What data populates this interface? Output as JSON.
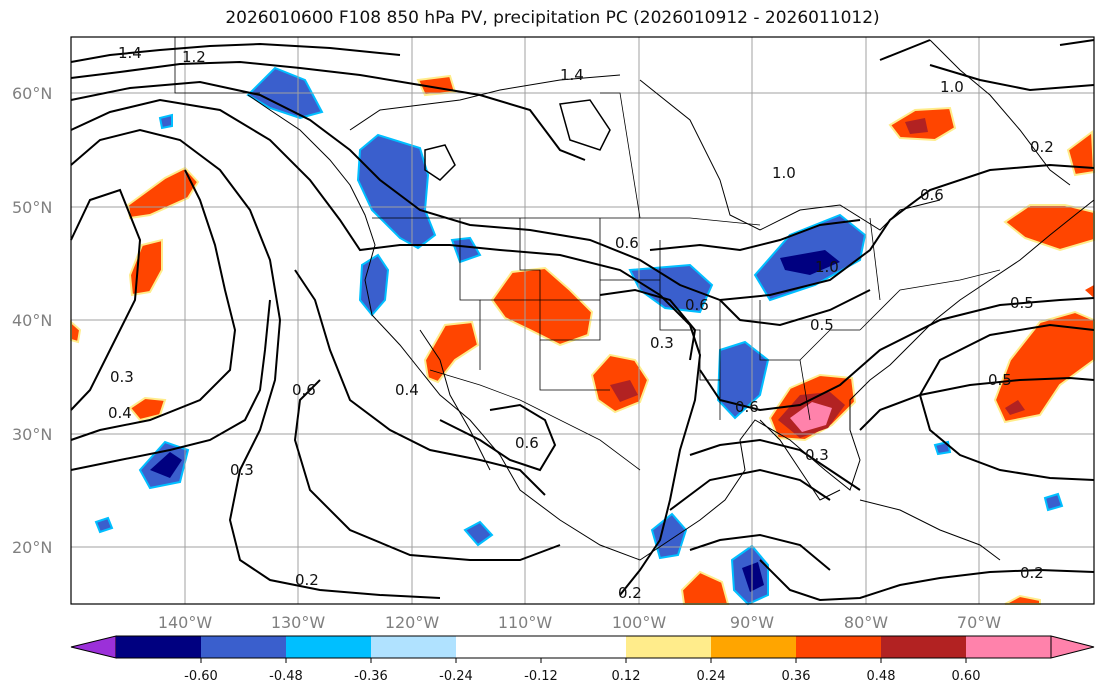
{
  "title": "2026010600 F108 850 hPa PV, precipitation PC (2026010912 - 2026011012)",
  "lat_labels": [
    "60°N",
    "50°N",
    "40°N",
    "30°N",
    "20°N"
  ],
  "lon_labels": [
    "140°W",
    "130°W",
    "120°W",
    "110°W",
    "100°W",
    "90°W",
    "80°W",
    "70°W"
  ],
  "contour_labels": [
    "1.4",
    "1.2",
    "1.4",
    "1.0",
    "1.0",
    "0.6",
    "0.5",
    "0.5",
    "0.3",
    "0.4",
    "0.6",
    "0.4",
    "0.3",
    "0.6",
    "0.3",
    "0.2",
    "0.2",
    "0.2",
    "1.0",
    "0.5",
    "0.6",
    "0.3",
    "0.6",
    "0.6",
    "0.2"
  ],
  "colorbar": {
    "ticks": [
      "-0.60",
      "-0.48",
      "-0.36",
      "-0.24",
      "-0.12",
      "0.12",
      "0.24",
      "0.36",
      "0.48",
      "0.60"
    ],
    "colors": [
      "#9b30d9",
      "#000080",
      "#3a5fcd",
      "#00bfff",
      "#b0e2ff",
      "#ffffff",
      "#ffec8b",
      "#ffa500",
      "#ff4500",
      "#b22222",
      "#ff82ab",
      "#ff82ab"
    ]
  },
  "shading": {
    "blue_dark": "#000080",
    "blue_mid": "#3a5fcd",
    "blue_light": "#00bfff",
    "orange": "#ff4500",
    "dark_red": "#b22222",
    "pink": "#ff82ab",
    "yellow": "#ffec8b"
  }
}
